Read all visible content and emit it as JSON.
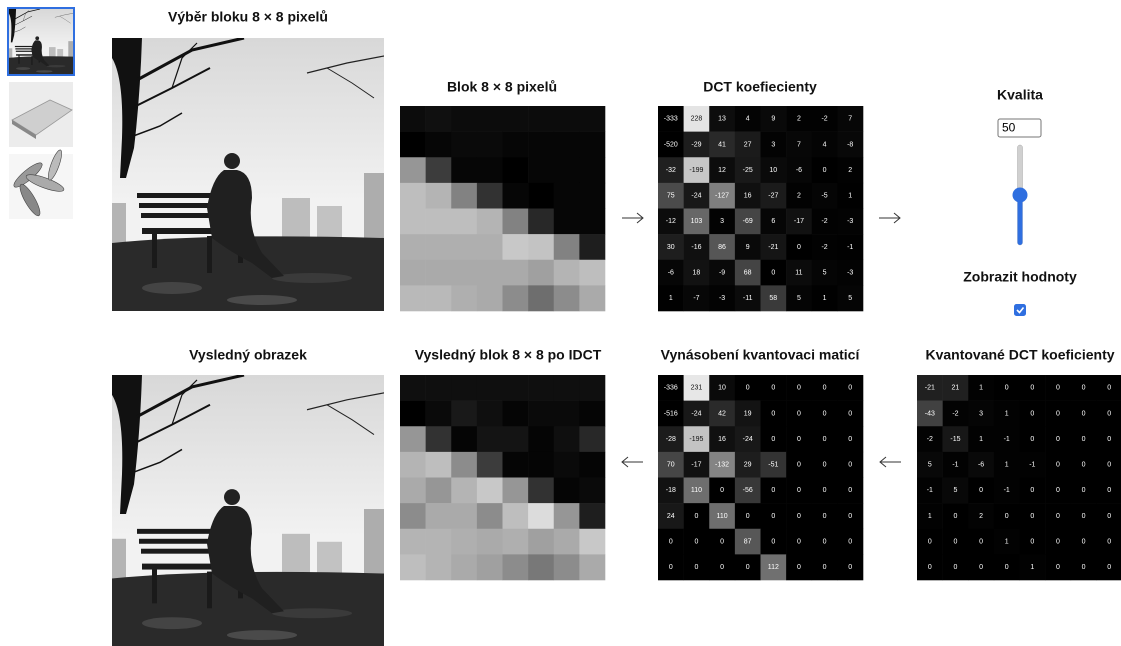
{
  "selection": {
    "title": "Výběr bloku 8 × 8 pixelů"
  },
  "block": {
    "title": "Blok 8 × 8 pixelů"
  },
  "dct": {
    "title": "DCT koefiecienty",
    "values": [
      [
        -333,
        228,
        13,
        4,
        9,
        2,
        -2,
        7
      ],
      [
        -520,
        -29,
        41,
        27,
        3,
        7,
        4,
        -8
      ],
      [
        -32,
        -199,
        12,
        -25,
        10,
        -6,
        0,
        2
      ],
      [
        75,
        -24,
        -127,
        16,
        -27,
        2,
        -5,
        1
      ],
      [
        -12,
        103,
        3,
        -69,
        6,
        -17,
        -2,
        -3
      ],
      [
        30,
        -16,
        86,
        9,
        -21,
        0,
        -2,
        -1
      ],
      [
        -6,
        18,
        -9,
        68,
        0,
        11,
        5,
        -3
      ],
      [
        1,
        -7,
        -3,
        -11,
        58,
        5,
        1,
        5
      ]
    ]
  },
  "quality": {
    "label": "Kvalita",
    "value": 50
  },
  "show_values": {
    "label": "Zobrazit hodnoty",
    "checked": true
  },
  "result": {
    "title": "Vysledný obrazek"
  },
  "idct_block": {
    "title": "Vysledný blok 8 × 8 po IDCT"
  },
  "dequantized": {
    "title": "Vynásobení kvantovaci maticí",
    "values": [
      [
        -336,
        231,
        10,
        0,
        0,
        0,
        0,
        0
      ],
      [
        -516,
        -24,
        42,
        19,
        0,
        0,
        0,
        0
      ],
      [
        -28,
        -195,
        16,
        -24,
        0,
        0,
        0,
        0
      ],
      [
        70,
        -17,
        -132,
        29,
        -51,
        0,
        0,
        0
      ],
      [
        -18,
        110,
        0,
        -56,
        0,
        0,
        0,
        0
      ],
      [
        24,
        0,
        110,
        0,
        0,
        0,
        0,
        0
      ],
      [
        0,
        0,
        0,
        87,
        0,
        0,
        0,
        0
      ],
      [
        0,
        0,
        0,
        0,
        112,
        0,
        0,
        0
      ]
    ]
  },
  "quantized": {
    "title": "Kvantované DCT koeficienty",
    "values": [
      [
        -21,
        21,
        1,
        0,
        0,
        0,
        0,
        0
      ],
      [
        -43,
        -2,
        3,
        1,
        0,
        0,
        0,
        0
      ],
      [
        -2,
        -15,
        1,
        -1,
        0,
        0,
        0,
        0
      ],
      [
        5,
        -1,
        -6,
        1,
        -1,
        0,
        0,
        0
      ],
      [
        -1,
        5,
        0,
        -1,
        0,
        0,
        0,
        0
      ],
      [
        1,
        0,
        2,
        0,
        0,
        0,
        0,
        0
      ],
      [
        0,
        0,
        0,
        1,
        0,
        0,
        0,
        0
      ],
      [
        0,
        0,
        0,
        0,
        1,
        0,
        0,
        0
      ]
    ]
  }
}
